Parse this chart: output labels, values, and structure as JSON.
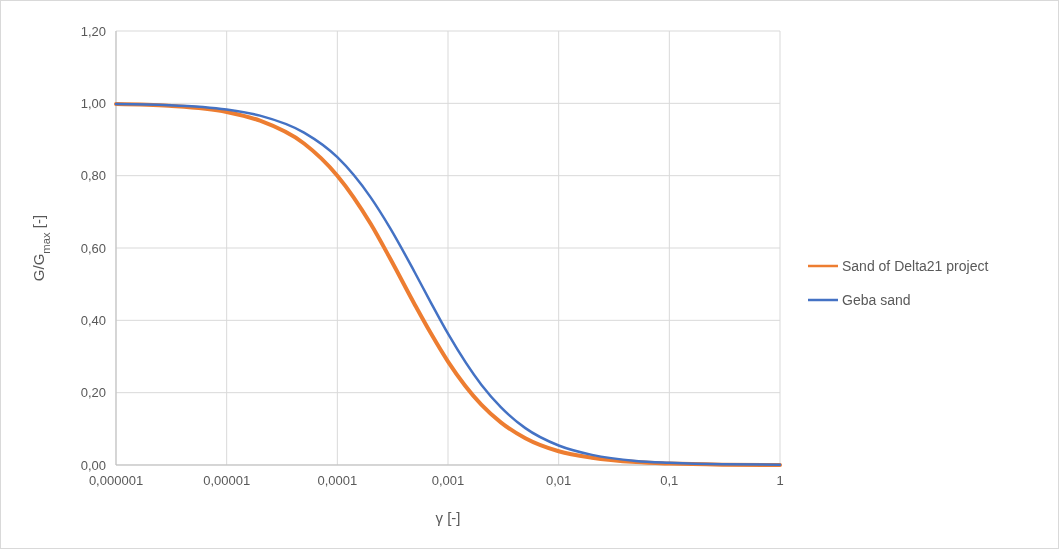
{
  "chart_data": {
    "type": "line",
    "xlabel": "γ [-]",
    "ylabel": "G/G$_{max}$ [-]",
    "log": "x",
    "x": [
      1e-06,
      3e-06,
      1e-05,
      2e-05,
      5e-05,
      0.0001,
      0.0002,
      0.0003,
      0.0005,
      0.0007,
      0.001,
      0.002,
      0.003,
      0.005,
      0.01,
      0.02,
      0.05,
      0.1,
      0.3,
      1
    ],
    "series": [
      {
        "name": "Sand of Delta21 project",
        "color": "#ed7d31",
        "values": [
          0.998,
          0.993,
          0.976,
          0.952,
          0.889,
          0.8,
          0.667,
          0.571,
          0.444,
          0.364,
          0.286,
          0.167,
          0.118,
          0.074,
          0.038,
          0.02,
          0.008,
          0.004,
          0.001,
          0.0
        ]
      },
      {
        "name": "Geba sand",
        "color": "#4472c4",
        "values": [
          0.998,
          0.995,
          0.983,
          0.966,
          0.919,
          0.851,
          0.74,
          0.655,
          0.533,
          0.449,
          0.363,
          0.222,
          0.16,
          0.102,
          0.054,
          0.028,
          0.011,
          0.006,
          0.002,
          0.001
        ]
      }
    ],
    "xlim": [
      1e-06,
      1
    ],
    "xticks": [
      {
        "value": 1e-06,
        "label": "0,000001"
      },
      {
        "value": 1e-05,
        "label": "0,00001"
      },
      {
        "value": 0.0001,
        "label": "0,0001"
      },
      {
        "value": 0.001,
        "label": "0,001"
      },
      {
        "value": 0.01,
        "label": "0,01"
      },
      {
        "value": 0.1,
        "label": "0,1"
      },
      1
    ],
    "ylim": [
      0,
      1.2
    ],
    "yticks": [
      {
        "value": 0,
        "label": "0,00"
      },
      {
        "value": 0.2,
        "label": "0,20"
      },
      {
        "value": 0.4,
        "label": "0,40"
      },
      {
        "value": 0.6,
        "label": "0,60"
      },
      {
        "value": 0.8,
        "label": "0,80"
      },
      {
        "value": 1,
        "label": "1,00"
      },
      {
        "value": 1.2,
        "label": "1,20"
      }
    ],
    "grid": true,
    "legend": "right",
    "marker": "none",
    "line_style": "solid"
  }
}
